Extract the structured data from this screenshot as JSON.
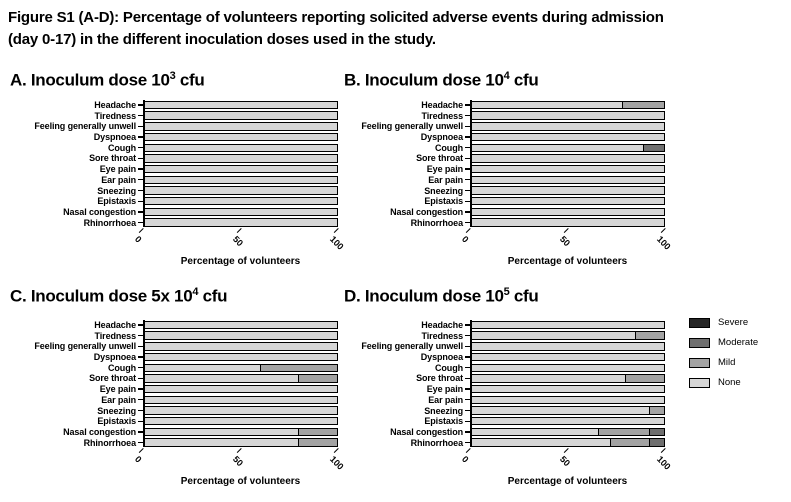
{
  "figure": {
    "title_line1": "Figure S1 (A-D): Percentage of volunteers reporting solicited adverse events during admission",
    "title_line2": "(day 0-17) in the different inoculation doses used in the study."
  },
  "categories": [
    "Headache",
    "Tiredness",
    "Feeling generally unwell",
    "Dyspnoea",
    "Cough",
    "Sore throat",
    "Eye pain",
    "Ear pain",
    "Sneezing",
    "Epistaxis",
    "Nasal congestion",
    "Rhinorrhoea"
  ],
  "legend": {
    "items": [
      {
        "label": "Severe",
        "color": "#262626"
      },
      {
        "label": "Moderate",
        "color": "#6f6f6f"
      },
      {
        "label": "Mild",
        "color": "#a3a3a3"
      },
      {
        "label": "None",
        "color": "#d6d6d6"
      }
    ]
  },
  "chart_data": [
    {
      "id": "A",
      "type": "bar",
      "orientation": "horizontal",
      "stacked": true,
      "title": {
        "prefix": "A. Inoculum dose 10",
        "exponent": "3",
        "suffix": " cfu"
      },
      "xlabel": "Percentage of volunteers",
      "xlim": [
        0,
        100
      ],
      "xticks": [
        0,
        50,
        100
      ],
      "series": [
        {
          "name": "None",
          "values": [
            100,
            100,
            100,
            100,
            100,
            100,
            100,
            100,
            100,
            100,
            100,
            100
          ]
        },
        {
          "name": "Mild",
          "values": [
            0,
            0,
            0,
            0,
            0,
            0,
            0,
            0,
            0,
            0,
            0,
            0
          ]
        },
        {
          "name": "Moderate",
          "values": [
            0,
            0,
            0,
            0,
            0,
            0,
            0,
            0,
            0,
            0,
            0,
            0
          ]
        },
        {
          "name": "Severe",
          "values": [
            0,
            0,
            0,
            0,
            0,
            0,
            0,
            0,
            0,
            0,
            0,
            0
          ]
        }
      ]
    },
    {
      "id": "B",
      "type": "bar",
      "orientation": "horizontal",
      "stacked": true,
      "title": {
        "prefix": "B. Inoculum dose 10",
        "exponent": "4",
        "suffix": " cfu"
      },
      "xlabel": "Percentage of volunteers",
      "xlim": [
        0,
        100
      ],
      "xticks": [
        0,
        50,
        100
      ],
      "series": [
        {
          "name": "None",
          "values": [
            78,
            100,
            100,
            100,
            89,
            100,
            100,
            100,
            100,
            100,
            100,
            100
          ]
        },
        {
          "name": "Mild",
          "values": [
            22,
            0,
            0,
            0,
            0,
            0,
            0,
            0,
            0,
            0,
            0,
            0
          ]
        },
        {
          "name": "Moderate",
          "values": [
            0,
            0,
            0,
            0,
            11,
            0,
            0,
            0,
            0,
            0,
            0,
            0
          ]
        },
        {
          "name": "Severe",
          "values": [
            0,
            0,
            0,
            0,
            0,
            0,
            0,
            0,
            0,
            0,
            0,
            0
          ]
        }
      ]
    },
    {
      "id": "C",
      "type": "bar",
      "orientation": "horizontal",
      "stacked": true,
      "title": {
        "prefix": "C. Inoculum dose 5x 10",
        "exponent": "4",
        "suffix": " cfu"
      },
      "xlabel": "Percentage of volunteers",
      "xlim": [
        0,
        100
      ],
      "xticks": [
        0,
        50,
        100
      ],
      "series": [
        {
          "name": "None",
          "values": [
            100,
            100,
            100,
            100,
            60,
            80,
            100,
            100,
            100,
            100,
            80,
            80
          ]
        },
        {
          "name": "Mild",
          "values": [
            0,
            0,
            0,
            0,
            40,
            20,
            0,
            0,
            0,
            0,
            20,
            20
          ]
        },
        {
          "name": "Moderate",
          "values": [
            0,
            0,
            0,
            0,
            0,
            0,
            0,
            0,
            0,
            0,
            0,
            0
          ]
        },
        {
          "name": "Severe",
          "values": [
            0,
            0,
            0,
            0,
            0,
            0,
            0,
            0,
            0,
            0,
            0,
            0
          ]
        }
      ]
    },
    {
      "id": "D",
      "type": "bar",
      "orientation": "horizontal",
      "stacked": true,
      "title": {
        "prefix": "D. Inoculum dose 10",
        "exponent": "5",
        "suffix": " cfu"
      },
      "xlabel": "Percentage of volunteers",
      "xlim": [
        0,
        100
      ],
      "xticks": [
        0,
        50,
        100
      ],
      "series": [
        {
          "name": "None",
          "values": [
            100,
            85,
            100,
            100,
            100,
            80,
            100,
            100,
            92,
            100,
            66,
            72
          ]
        },
        {
          "name": "Mild",
          "values": [
            0,
            15,
            0,
            0,
            0,
            20,
            0,
            0,
            8,
            0,
            26,
            20
          ]
        },
        {
          "name": "Moderate",
          "values": [
            0,
            0,
            0,
            0,
            0,
            0,
            0,
            0,
            0,
            0,
            8,
            8
          ]
        },
        {
          "name": "Severe",
          "values": [
            0,
            0,
            0,
            0,
            0,
            0,
            0,
            0,
            0,
            0,
            0,
            0
          ]
        }
      ]
    }
  ]
}
